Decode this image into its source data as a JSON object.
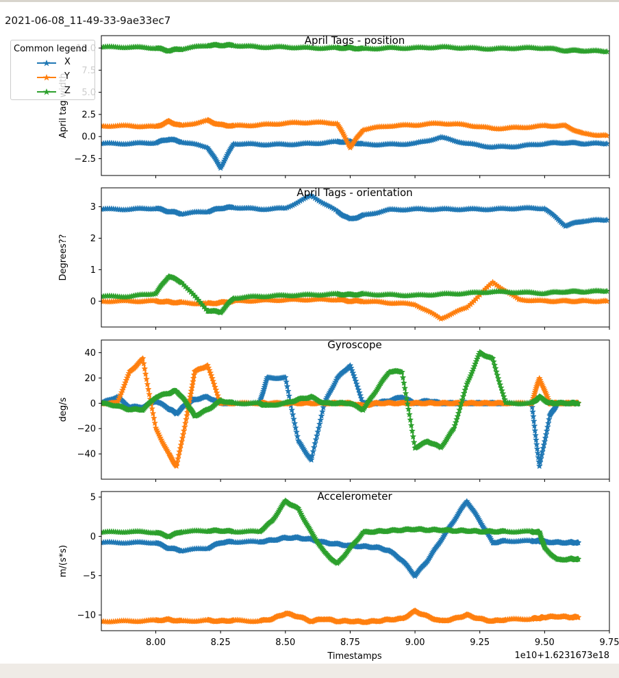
{
  "window": {
    "title": "2021-06-08_11-49-33-9ae33ec7"
  },
  "legend": {
    "title": "Common legend",
    "items": [
      {
        "label": "X",
        "color": "#1f77b4",
        "marker": "star"
      },
      {
        "label": "Y",
        "color": "#ff7f0e",
        "marker": "star"
      },
      {
        "label": "Z",
        "color": "#2ca02c",
        "marker": "star"
      }
    ]
  },
  "x_axis": {
    "label": "Timestamps",
    "offset_text": "1e10+1.6231673e18",
    "tick_labels": [
      "8.00",
      "8.25",
      "8.50",
      "8.75",
      "9.00",
      "9.25",
      "9.50",
      "9.75"
    ]
  },
  "chart_data": [
    {
      "type": "line",
      "title": "April Tags - position",
      "xlabel": "Timestamps",
      "ylabel": "April tag width",
      "xlim": [
        7.79,
        9.75
      ],
      "ylim": [
        -4.4,
        11.4
      ],
      "y_ticks": [
        -2.5,
        0.0,
        2.5,
        5.0,
        7.5,
        10.0
      ],
      "y_tick_labels": [
        "−2.5",
        "0.0",
        "2.5",
        "5.0",
        "7.5",
        "10.0"
      ],
      "x": [
        7.79,
        7.9,
        8.0,
        8.05,
        8.1,
        8.2,
        8.25,
        8.3,
        8.4,
        8.5,
        8.6,
        8.7,
        8.75,
        8.8,
        8.9,
        9.0,
        9.1,
        9.2,
        9.3,
        9.4,
        9.5,
        9.58,
        9.65,
        9.74
      ],
      "series": [
        {
          "name": "X",
          "values": [
            -0.8,
            -0.8,
            -0.7,
            -0.3,
            -0.6,
            -1.2,
            -3.5,
            -0.8,
            -0.9,
            -0.9,
            -0.8,
            -0.6,
            -0.6,
            -0.9,
            -0.9,
            -0.8,
            -0.1,
            -0.8,
            -1.2,
            -1.1,
            -0.8,
            -0.7,
            -0.8,
            -0.8
          ]
        },
        {
          "name": "Y",
          "values": [
            1.2,
            1.2,
            1.1,
            1.7,
            1.2,
            1.8,
            1.3,
            1.2,
            1.3,
            1.5,
            1.6,
            1.5,
            -1.2,
            0.8,
            1.2,
            1.3,
            1.5,
            1.3,
            0.9,
            1.0,
            1.2,
            1.2,
            0.3,
            0.1
          ]
        },
        {
          "name": "Z",
          "values": [
            10.1,
            10.1,
            10.0,
            9.7,
            9.9,
            10.3,
            10.3,
            10.3,
            10.1,
            10.1,
            10.0,
            10.0,
            10.0,
            9.9,
            10.0,
            10.0,
            10.1,
            10.0,
            9.9,
            10.0,
            10.0,
            9.7,
            9.7,
            9.6
          ]
        }
      ]
    },
    {
      "type": "line",
      "title": "April Tags - orientation",
      "xlabel": "Timestamps",
      "ylabel": "Degrees??",
      "xlim": [
        7.79,
        9.75
      ],
      "ylim": [
        -0.82,
        3.6
      ],
      "y_ticks": [
        0,
        1,
        2,
        3
      ],
      "y_tick_labels": [
        "0",
        "1",
        "2",
        "3"
      ],
      "x": [
        7.79,
        7.9,
        8.0,
        8.05,
        8.1,
        8.2,
        8.25,
        8.3,
        8.4,
        8.5,
        8.6,
        8.7,
        8.75,
        8.8,
        8.9,
        9.0,
        9.1,
        9.2,
        9.3,
        9.4,
        9.5,
        9.58,
        9.65,
        9.74
      ],
      "series": [
        {
          "name": "X",
          "values": [
            2.92,
            2.92,
            2.95,
            2.85,
            2.78,
            2.85,
            2.95,
            2.98,
            2.92,
            2.95,
            3.35,
            2.85,
            2.6,
            2.72,
            2.9,
            2.92,
            2.92,
            2.92,
            2.92,
            2.95,
            2.95,
            2.4,
            2.55,
            2.58
          ]
        },
        {
          "name": "Y",
          "values": [
            0.0,
            0.0,
            0.0,
            -0.03,
            -0.05,
            -0.08,
            -0.05,
            0.0,
            0.02,
            0.04,
            0.05,
            0.05,
            0.0,
            0.0,
            -0.05,
            -0.1,
            -0.55,
            -0.2,
            0.6,
            0.05,
            0.0,
            0.0,
            0.0,
            0.0
          ]
        },
        {
          "name": "Z",
          "values": [
            0.15,
            0.15,
            0.25,
            0.8,
            0.6,
            -0.3,
            -0.35,
            0.1,
            0.15,
            0.18,
            0.2,
            0.22,
            0.2,
            0.22,
            0.2,
            0.18,
            0.22,
            0.25,
            0.3,
            0.28,
            0.25,
            0.3,
            0.3,
            0.32
          ]
        }
      ]
    },
    {
      "type": "line",
      "title": "Gyroscope",
      "xlabel": "Timestamps",
      "ylabel": "deg/s",
      "xlim": [
        7.79,
        9.75
      ],
      "ylim": [
        -60,
        50
      ],
      "y_ticks": [
        -40,
        -20,
        0,
        20,
        40
      ],
      "y_tick_labels": [
        "−40",
        "−20",
        "0",
        "20",
        "40"
      ],
      "x": [
        7.79,
        7.85,
        7.9,
        7.95,
        8.0,
        8.05,
        8.08,
        8.12,
        8.15,
        8.2,
        8.25,
        8.3,
        8.4,
        8.43,
        8.5,
        8.55,
        8.6,
        8.65,
        8.7,
        8.75,
        8.8,
        8.85,
        8.9,
        8.95,
        9.0,
        9.05,
        9.1,
        9.15,
        9.2,
        9.25,
        9.3,
        9.35,
        9.45,
        9.48,
        9.52,
        9.55,
        9.6,
        9.63
      ],
      "series": [
        {
          "name": "X",
          "values": [
            0,
            5,
            -3,
            -3,
            2,
            -4,
            -8,
            0,
            3,
            5,
            0,
            0,
            0,
            20,
            20,
            -30,
            -45,
            0,
            20,
            30,
            0,
            0,
            2,
            5,
            0,
            2,
            0,
            0,
            0,
            0,
            0,
            0,
            0,
            -50,
            -10,
            0,
            0,
            0
          ]
        },
        {
          "name": "Y",
          "values": [
            0,
            0,
            25,
            35,
            -20,
            -40,
            -50,
            -10,
            25,
            30,
            0,
            0,
            0,
            0,
            0,
            0,
            0,
            0,
            0,
            0,
            -2,
            0,
            0,
            0,
            0,
            0,
            0,
            0,
            0,
            0,
            0,
            0,
            0,
            20,
            0,
            0,
            0,
            0
          ]
        },
        {
          "name": "Z",
          "values": [
            0,
            -2,
            -5,
            -5,
            5,
            8,
            10,
            0,
            -10,
            -5,
            2,
            0,
            0,
            -2,
            0,
            3,
            5,
            0,
            0,
            0,
            -5,
            10,
            25,
            25,
            -35,
            -30,
            -35,
            -20,
            15,
            40,
            35,
            0,
            0,
            5,
            0,
            0,
            0,
            0
          ]
        }
      ]
    },
    {
      "type": "line",
      "title": "Accelerometer",
      "xlabel": "Timestamps",
      "ylabel": "m/(s*s)",
      "xlim": [
        7.79,
        9.75
      ],
      "ylim": [
        -12,
        5.7
      ],
      "y_ticks": [
        -10,
        -5,
        0,
        5
      ],
      "y_tick_labels": [
        "−10",
        "−5",
        "0",
        "5"
      ],
      "x": [
        7.79,
        7.9,
        8.0,
        8.05,
        8.1,
        8.2,
        8.25,
        8.3,
        8.4,
        8.45,
        8.5,
        8.55,
        8.6,
        8.65,
        8.7,
        8.75,
        8.8,
        8.85,
        8.9,
        8.95,
        9.0,
        9.05,
        9.1,
        9.15,
        9.2,
        9.25,
        9.3,
        9.35,
        9.45,
        9.48,
        9.5,
        9.55,
        9.6,
        9.63
      ],
      "series": [
        {
          "name": "X",
          "values": [
            -0.8,
            -0.8,
            -0.8,
            -1.5,
            -1.8,
            -1.5,
            -0.8,
            -0.7,
            -0.7,
            -0.5,
            -0.2,
            -0.2,
            -0.4,
            -0.8,
            -1.0,
            -1.2,
            -1.3,
            -1.4,
            -1.8,
            -3.0,
            -5.0,
            -3.0,
            -0.5,
            2.0,
            4.5,
            2.0,
            -0.8,
            -0.6,
            -0.6,
            -0.6,
            -0.7,
            -0.8,
            -0.8,
            -0.8
          ]
        },
        {
          "name": "Y",
          "values": [
            -10.8,
            -10.8,
            -10.7,
            -10.6,
            -10.8,
            -10.7,
            -10.8,
            -10.7,
            -10.8,
            -10.5,
            -9.8,
            -10.2,
            -10.8,
            -10.5,
            -10.8,
            -10.8,
            -10.9,
            -10.8,
            -10.6,
            -10.5,
            -9.5,
            -10.2,
            -10.8,
            -10.5,
            -10.0,
            -10.5,
            -10.8,
            -10.6,
            -10.5,
            -10.4,
            -10.3,
            -10.2,
            -10.3,
            -10.3
          ]
        },
        {
          "name": "Z",
          "values": [
            0.5,
            0.6,
            0.5,
            0.0,
            0.6,
            0.7,
            0.7,
            0.6,
            0.6,
            2.0,
            4.5,
            3.5,
            0.5,
            -2.0,
            -3.5,
            -1.5,
            0.5,
            0.6,
            0.7,
            0.8,
            0.9,
            0.8,
            0.8,
            0.7,
            0.7,
            0.6,
            0.6,
            0.6,
            0.6,
            0.5,
            -1.5,
            -3.0,
            -2.9,
            -2.9
          ]
        }
      ]
    }
  ]
}
